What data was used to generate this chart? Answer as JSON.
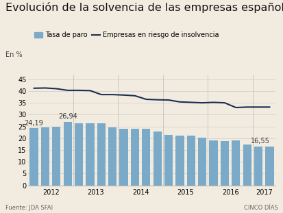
{
  "title": "Evolución de la solvencia de las empresas españolas",
  "ylabel": "En %",
  "legend_bar": "Tasa de paro",
  "legend_line": "Empresas en riesgo de insolvencia",
  "source": "Fuente: JDA SFAI",
  "brand": "CINCO DÍAS",
  "background_color": "#f2ece0",
  "bar_color": "#7aaac8",
  "line_color": "#1c2e52",
  "bar_values": [
    24.19,
    24.7,
    25.0,
    26.94,
    26.4,
    26.2,
    26.2,
    24.7,
    23.9,
    23.9,
    24.0,
    22.7,
    21.4,
    21.2,
    21.2,
    20.2,
    19.2,
    18.9,
    19.0,
    17.3,
    16.5,
    16.55
  ],
  "line_values": [
    41.2,
    41.3,
    41.0,
    40.3,
    40.3,
    40.2,
    38.5,
    38.5,
    38.3,
    38.0,
    36.5,
    36.3,
    36.2,
    35.4,
    35.2,
    35.0,
    35.2,
    35.0,
    33.0,
    33.2,
    33.2,
    33.2
  ],
  "year_labels": [
    "2012",
    "2013",
    "2014",
    "2015",
    "2016",
    "2017"
  ],
  "ylim": [
    0,
    47
  ],
  "yticks": [
    0,
    5,
    10,
    15,
    20,
    25,
    30,
    35,
    40,
    45
  ],
  "title_fontsize": 11.5,
  "label_fontsize": 7,
  "tick_fontsize": 7,
  "source_fontsize": 6
}
